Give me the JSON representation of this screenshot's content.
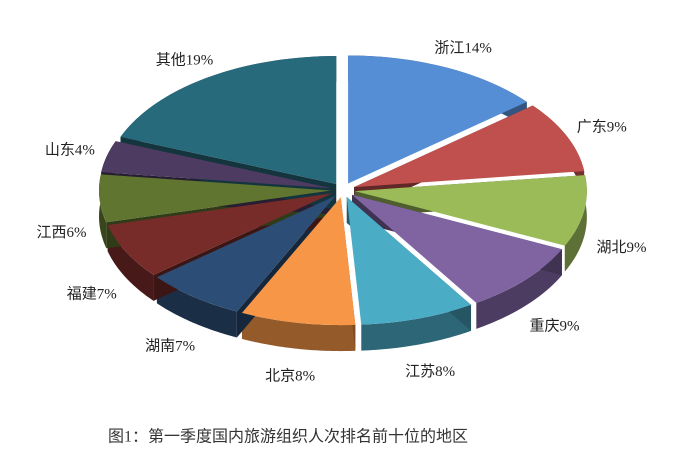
{
  "chart_data": {
    "type": "pie",
    "caption": "图1：第一季度国内旅游组织人次排名前十位的地区",
    "values": [
      14,
      9,
      9,
      9,
      8,
      8,
      7,
      7,
      6,
      4,
      19
    ],
    "value_labels": [
      "浙江14%",
      "广东9%",
      "湖北9%",
      "重庆9%",
      "江苏8%",
      "北京8%",
      "湖南7%",
      "福建7%",
      "江西6%",
      "山东4%",
      "其他19%"
    ],
    "colors": [
      "#558ed5",
      "#c0504d",
      "#9bbb59",
      "#8064a2",
      "#4bacc6",
      "#f79646",
      "#2c4d75",
      "#772c2a",
      "#5f7530",
      "#4d3b62",
      "#276a7c"
    ]
  }
}
